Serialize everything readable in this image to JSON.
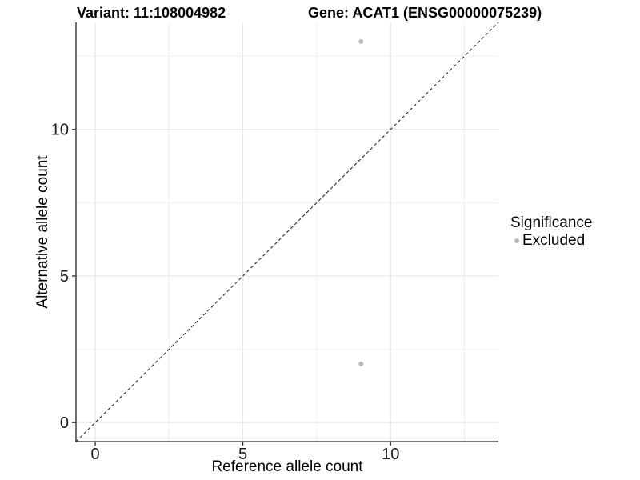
{
  "chart_data": {
    "type": "scatter",
    "title_left": "Variant: 11:108004982",
    "title_right": "Gene: ACAT1 (ENSG00000075239)",
    "xlabel": "Reference allele count",
    "ylabel": "Alternative allele count",
    "xlim": [
      -0.65,
      13.65
    ],
    "ylim": [
      -0.65,
      13.65
    ],
    "x_ticks": {
      "values": [
        0,
        5,
        10
      ],
      "labels": [
        "0",
        "5",
        "10"
      ]
    },
    "y_ticks": {
      "values": [
        0,
        5,
        10
      ],
      "labels": [
        "0",
        "5",
        "10"
      ]
    },
    "minor_gridlines": [
      2.5,
      7.5,
      12.5
    ],
    "grid": true,
    "points": [
      {
        "x": 9,
        "y": 13,
        "significance": "Excluded"
      },
      {
        "x": 9,
        "y": 2,
        "significance": "Excluded"
      }
    ],
    "reference_line": {
      "slope": 1,
      "intercept": 0,
      "style": "dashed",
      "color": "#1a1a1a"
    },
    "legend": {
      "position": "right",
      "title": "Significance",
      "items": [
        {
          "label": "Excluded",
          "color": "#b9b9b9"
        }
      ]
    },
    "colors": {
      "point": "#b9b9b9",
      "grid_major": "#e3e3e3",
      "grid_minor": "#efefef",
      "axis_line": "#262626",
      "tick_text": "#1a1a1a",
      "background": "#ffffff"
    }
  }
}
